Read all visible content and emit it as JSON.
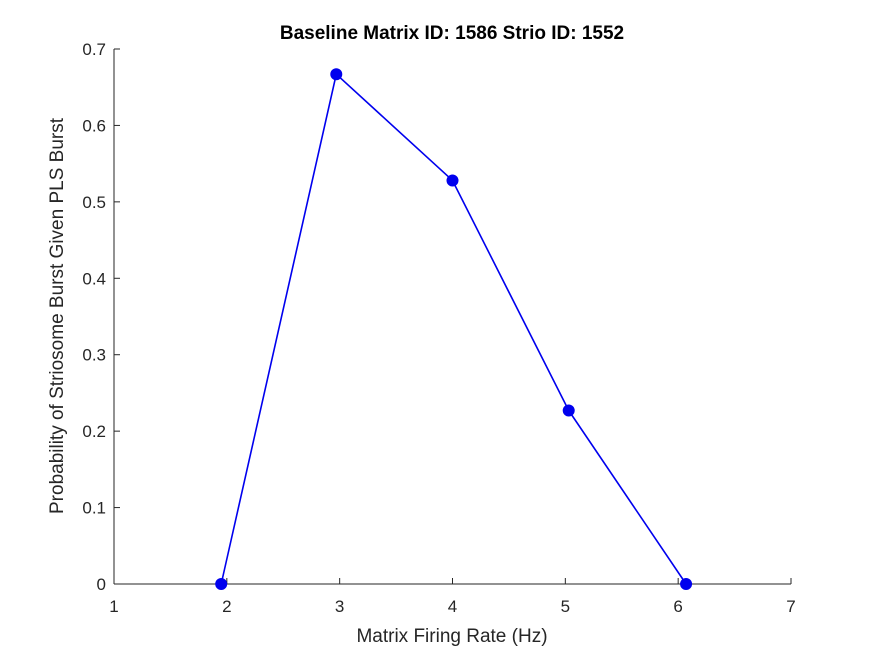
{
  "chart_data": {
    "type": "line",
    "title": "Baseline Matrix ID: 1586 Strio ID: 1552",
    "xlabel": "Matrix Firing Rate (Hz)",
    "ylabel": "Probability of Striosome Burst Given PLS Burst",
    "xlim": [
      1,
      7
    ],
    "ylim": [
      0,
      0.7
    ],
    "xticks": [
      1,
      2,
      3,
      4,
      5,
      6,
      7
    ],
    "yticks": [
      0,
      0.1,
      0.2,
      0.3,
      0.4,
      0.5,
      0.6,
      0.7
    ],
    "grid": false,
    "legend": "none",
    "series": [
      {
        "color": "#0000ee",
        "marker": "circle",
        "x": [
          1.95,
          2.97,
          4.0,
          5.03,
          6.07
        ],
        "y": [
          0.0,
          0.667,
          0.528,
          0.227,
          0.0
        ]
      }
    ]
  }
}
